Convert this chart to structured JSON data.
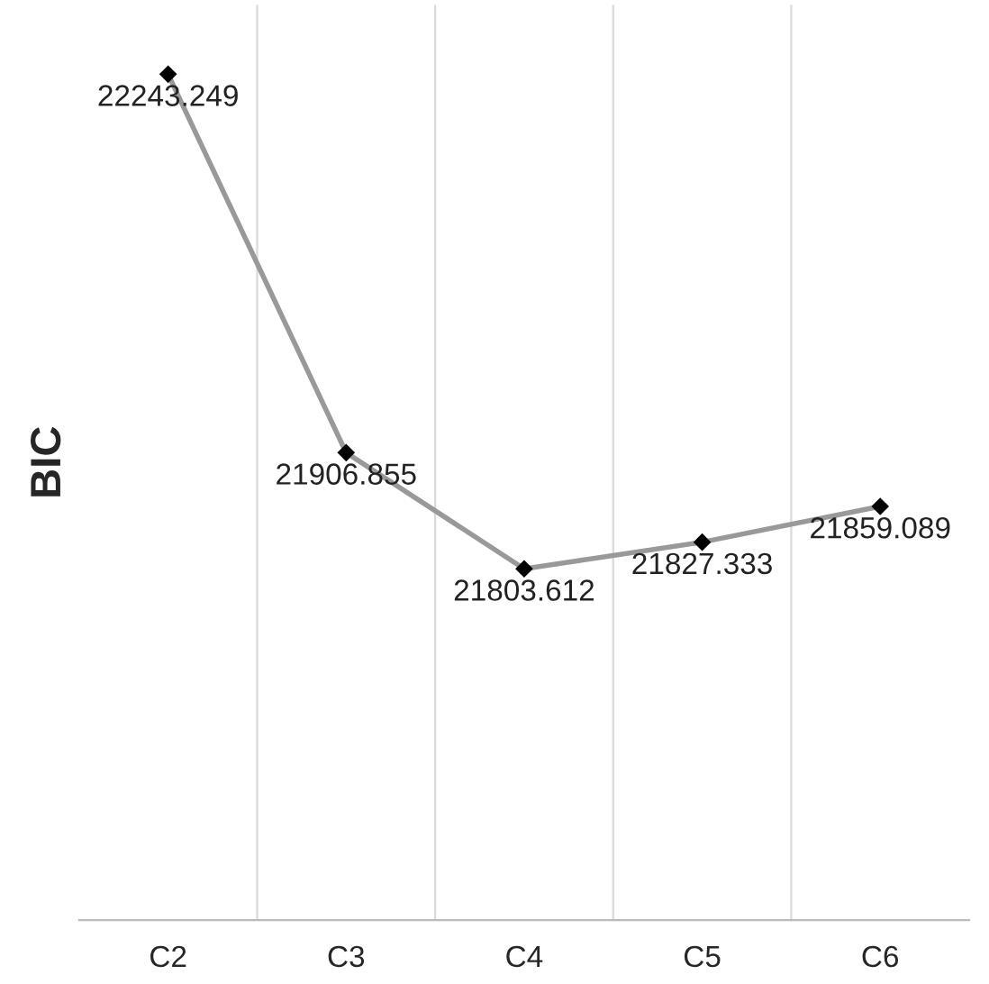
{
  "chart_data": {
    "type": "line",
    "ylabel": "BIC",
    "categories": [
      "C2",
      "C3",
      "C4",
      "C5",
      "C6"
    ],
    "series": [
      {
        "color": "#999999",
        "values": [
          22243.249,
          21906.855,
          21803.612,
          21827.333,
          21859.089
        ]
      }
    ],
    "data_labels": true,
    "marker": "diamond",
    "grid": "x",
    "legend": false
  }
}
